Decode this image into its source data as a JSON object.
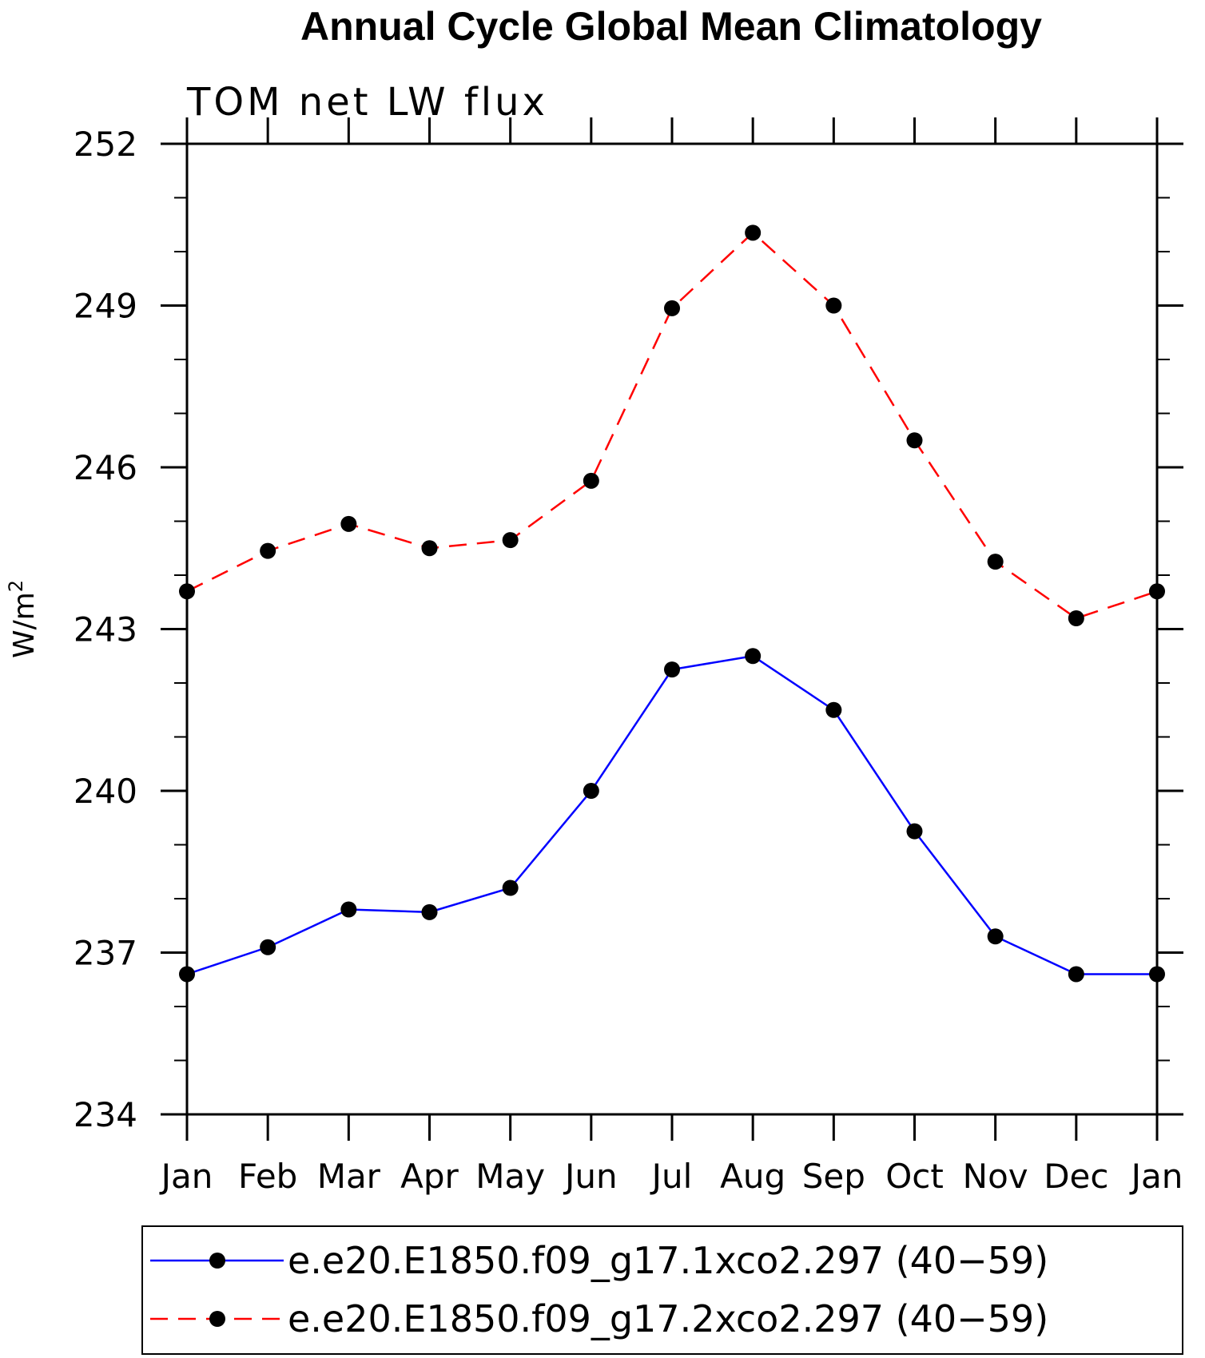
{
  "chart_data": {
    "type": "line",
    "title": "Annual Cycle Global Mean Climatology",
    "subtitle": "TOM net LW flux",
    "ylabel": "W/m",
    "ylabel_superscript": "2",
    "xlabel": "",
    "categories": [
      "Jan",
      "Feb",
      "Mar",
      "Apr",
      "May",
      "Jun",
      "Jul",
      "Aug",
      "Sep",
      "Oct",
      "Nov",
      "Dec",
      "Jan"
    ],
    "ylim": [
      234,
      252
    ],
    "yticks": [
      234,
      237,
      240,
      243,
      246,
      249,
      252
    ],
    "yticks_minor_step": 1,
    "grid": false,
    "legend_position": "bottom",
    "series": [
      {
        "name": "e.e20.E1850.f09_g17.1xco2.297 (40−59)",
        "color": "#0000ff",
        "line_style": "solid",
        "marker": "filled-circle",
        "values": [
          236.6,
          237.1,
          237.8,
          237.75,
          238.2,
          240.0,
          242.25,
          242.5,
          241.5,
          239.25,
          237.3,
          236.6,
          236.6
        ]
      },
      {
        "name": "e.e20.E1850.f09_g17.2xco2.297 (40−59)",
        "color": "#ff0000",
        "line_style": "dashed",
        "marker": "filled-circle",
        "values": [
          243.7,
          244.45,
          244.95,
          244.5,
          244.65,
          245.75,
          248.95,
          250.35,
          249.0,
          246.5,
          244.25,
          243.2,
          243.7
        ]
      }
    ]
  }
}
